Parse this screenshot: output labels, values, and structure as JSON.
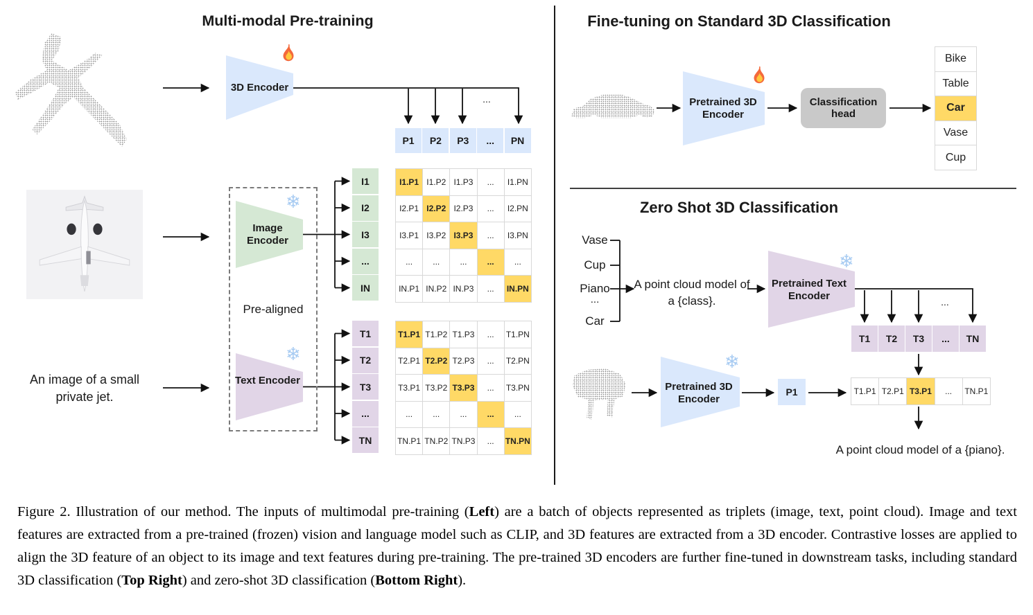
{
  "left_panel": {
    "title": "Multi-modal Pre-training",
    "encoder_3d_label": "3D Encoder",
    "image_encoder_label": "Image Encoder",
    "text_encoder_label": "Text Encoder",
    "pre_aligned_label": "Pre-aligned",
    "text_input": "An image of a small private jet.",
    "dots_label": "...",
    "p_row": [
      "P1",
      "P2",
      "P3",
      "...",
      "PN"
    ],
    "i_col": [
      "I1",
      "I2",
      "I3",
      "...",
      "IN"
    ],
    "t_col": [
      "T1",
      "T2",
      "T3",
      "...",
      "TN"
    ],
    "image_matrix": [
      [
        "I1.P1",
        "I1.P2",
        "I1.P3",
        "...",
        "I1.PN"
      ],
      [
        "I2.P1",
        "I2.P2",
        "I2.P3",
        "...",
        "I2.PN"
      ],
      [
        "I3.P1",
        "I3.P2",
        "I3.P3",
        "...",
        "I3.PN"
      ],
      [
        "...",
        "...",
        "...",
        "...",
        "..."
      ],
      [
        "IN.P1",
        "IN.P2",
        "IN.P3",
        "...",
        "IN.PN"
      ]
    ],
    "text_matrix": [
      [
        "T1.P1",
        "T1.P2",
        "T1.P3",
        "...",
        "T1.PN"
      ],
      [
        "T2.P1",
        "T2.P2",
        "T2.P3",
        "...",
        "T2.PN"
      ],
      [
        "T3.P1",
        "T3.P2",
        "T3.P3",
        "...",
        "T3.PN"
      ],
      [
        "...",
        "...",
        "...",
        "...",
        "..."
      ],
      [
        "TN.P1",
        "TN.P2",
        "TN.P3",
        "...",
        "TN.PN"
      ]
    ]
  },
  "top_right_panel": {
    "title": "Fine-tuning on Standard 3D Classification",
    "encoder_label": "Pretrained 3D Encoder",
    "head_label": "Classification head",
    "classes": [
      "Bike",
      "Table",
      "Car",
      "Vase",
      "Cup"
    ],
    "predicted_class": "Car"
  },
  "bottom_right_panel": {
    "title": "Zero Shot 3D Classification",
    "class_list": [
      "Vase",
      "Cup",
      "Piano",
      "...",
      "Car"
    ],
    "prompt_text": "A point cloud model of a {class}.",
    "text_encoder_label": "Pretrained Text Encoder",
    "encoder_3d_label": "Pretrained 3D Encoder",
    "p_cell": "P1",
    "dots_label": "...",
    "t_row": [
      "T1",
      "T2",
      "T3",
      "...",
      "TN"
    ],
    "tp_row": [
      "T1.P1",
      "T2.P1",
      "T3.P1",
      "...",
      "TN.P1"
    ],
    "result_text": "A point cloud model of a {piano}."
  },
  "caption": {
    "segments": [
      {
        "t": "Figure 2. Illustration of our method. The inputs of multimodal pre-training ("
      },
      {
        "t": "Left",
        "b": true
      },
      {
        "t": ") are a batch of objects represented as triplets (image, text, point cloud). Image and text features are extracted from a pre-trained (frozen) vision and language model such as CLIP, and 3D features are extracted from a 3D encoder. Contrastive losses are applied to align the 3D feature of an object to its image and text features during pre-training. The pre-trained 3D encoders are further fine-tuned in downstream tasks, including standard 3D classification ("
      },
      {
        "t": "Top Right",
        "b": true
      },
      {
        "t": ") and zero-shot 3D classification ("
      },
      {
        "t": "Bottom Right",
        "b": true
      },
      {
        "t": ")."
      }
    ]
  },
  "icons": {
    "snowflake_char": "❄"
  },
  "colors": {
    "blue": "#DAE8FC",
    "green": "#D5E8D4",
    "purple": "#E1D5E7",
    "highlight": "#FFD966",
    "head_gray": "#C9C9C9",
    "grid_border": "#D8D8D8"
  }
}
